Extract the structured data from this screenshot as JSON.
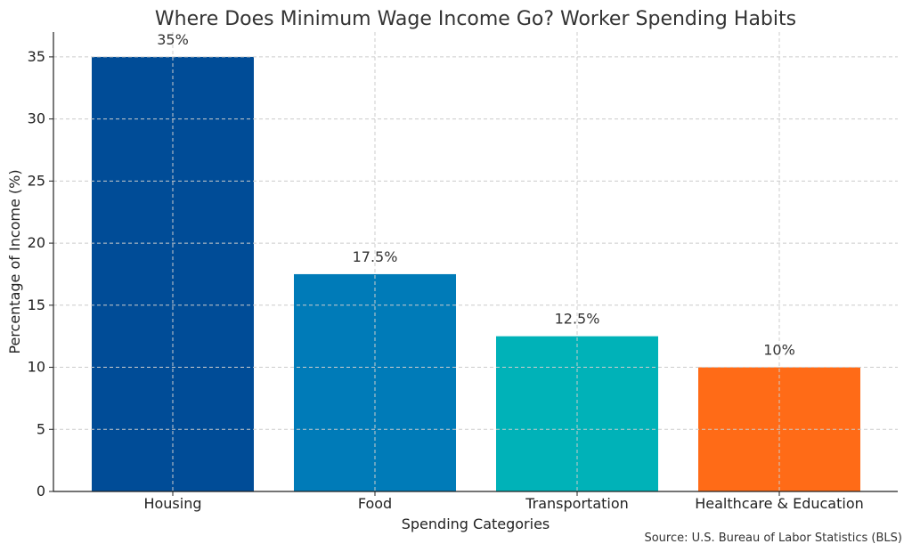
{
  "chart_data": {
    "type": "bar",
    "title": "Where Does Minimum Wage Income Go? Worker Spending Habits",
    "xlabel": "Spending Categories",
    "ylabel": "Percentage of Income (%)",
    "categories": [
      "Housing",
      "Food",
      "Transportation",
      "Healthcare & Education"
    ],
    "values": [
      35,
      17.5,
      12.5,
      10
    ],
    "data_labels": [
      "35%",
      "17.5%",
      "12.5%",
      "10%"
    ],
    "colors": [
      "#004C97",
      "#007BB8",
      "#00B2B8",
      "#FF6B17"
    ],
    "ylim": [
      0,
      37
    ],
    "yticks": [
      0,
      5,
      10,
      15,
      20,
      25,
      30,
      35
    ],
    "grid": true,
    "source": "Source: U.S. Bureau of Labor Statistics (BLS)"
  }
}
